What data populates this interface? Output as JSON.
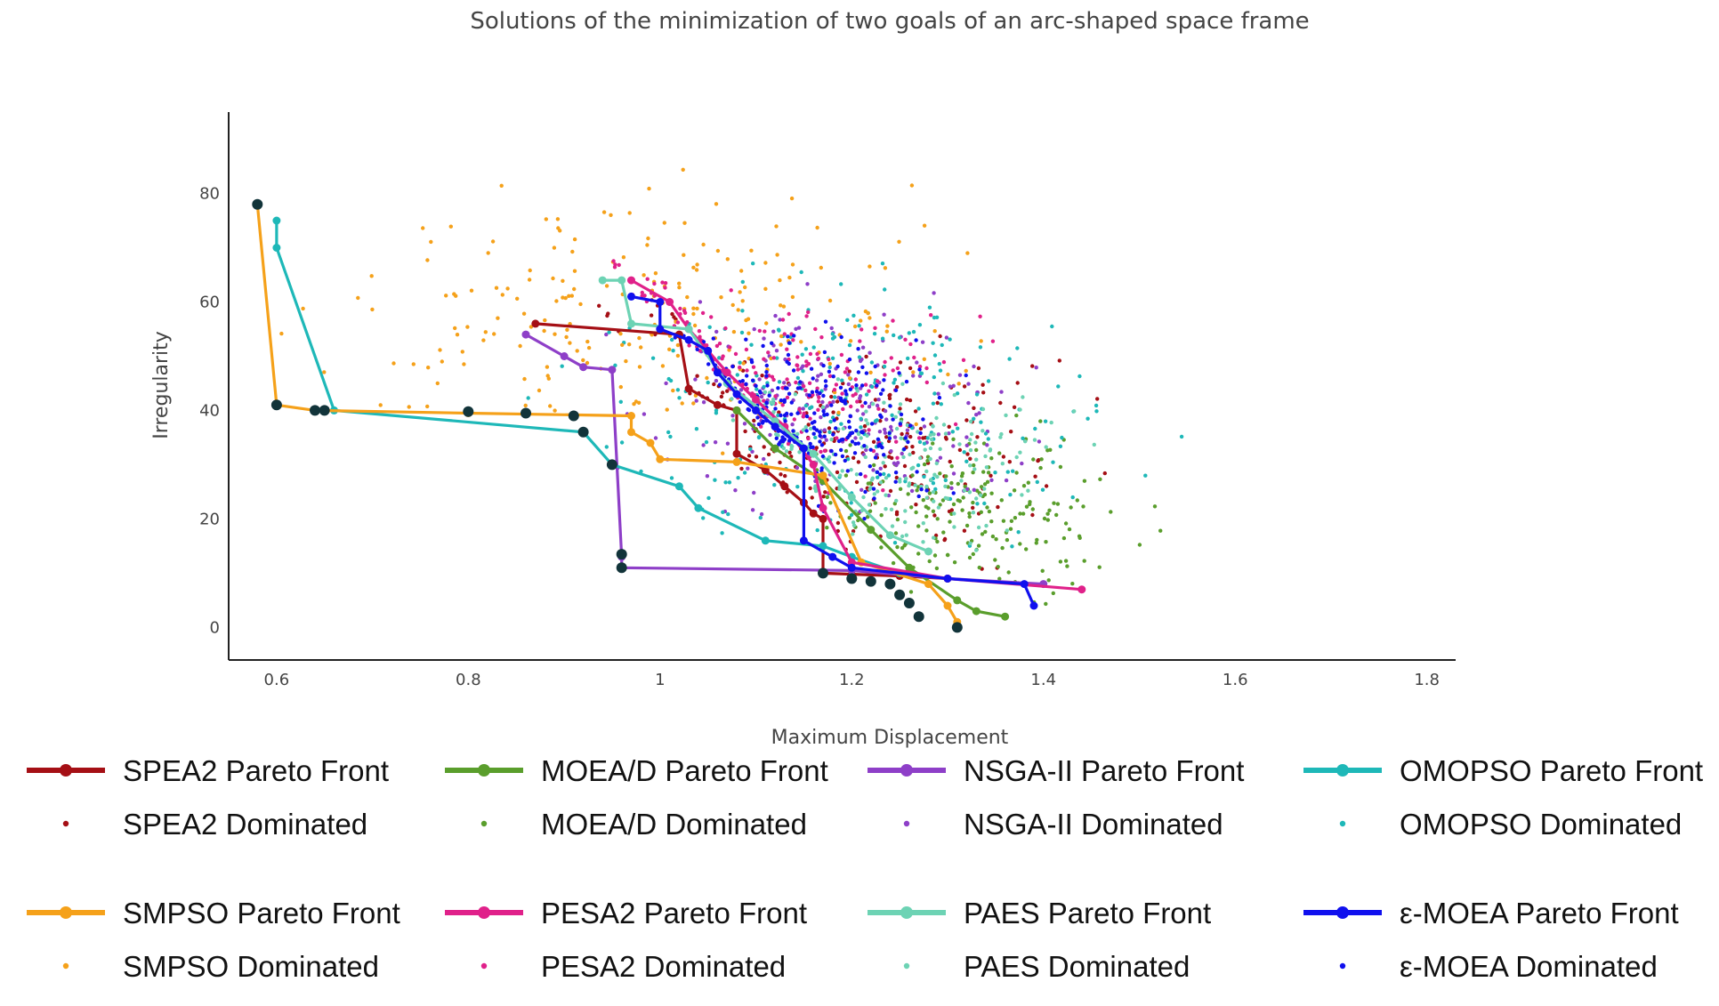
{
  "chart_data": {
    "type": "scatter",
    "title": "Solutions of the minimization of two goals of an arc-shaped space frame",
    "xlabel": "Maximum Displacement",
    "ylabel": "Irregularity",
    "xlim": [
      0.55,
      1.83
    ],
    "ylim": [
      -6,
      95
    ],
    "xticks": [
      0.6,
      0.8,
      1,
      1.2,
      1.4,
      1.6,
      1.8
    ],
    "xtick_labels": [
      "0.6",
      "0.8",
      "1",
      "1.2",
      "1.4",
      "1.6",
      "1.8"
    ],
    "yticks": [
      0,
      20,
      40,
      60,
      80
    ],
    "ytick_labels": [
      "0",
      "20",
      "40",
      "60",
      "80"
    ],
    "grid": false,
    "legend_position": "bottom",
    "series": [
      {
        "name": "SPEA2 Pareto Front",
        "dominated_name": "SPEA2 Dominated",
        "color": "#a50f15",
        "pareto": [
          [
            0.87,
            56
          ],
          [
            1.02,
            54
          ],
          [
            1.03,
            44
          ],
          [
            1.06,
            41
          ],
          [
            1.08,
            40
          ],
          [
            1.08,
            32
          ],
          [
            1.11,
            29
          ],
          [
            1.13,
            26
          ],
          [
            1.15,
            23
          ],
          [
            1.16,
            21
          ],
          [
            1.17,
            20
          ],
          [
            1.17,
            10
          ],
          [
            1.25,
            9.5
          ],
          [
            1.3,
            9
          ]
        ],
        "dominated_center": [
          1.2,
          33
        ],
        "dominated_spread": [
          0.2,
          17
        ],
        "dominated_count": 220
      },
      {
        "name": "MOEA/D Pareto Front",
        "dominated_name": "MOEA/D Dominated",
        "color": "#5a9e2c",
        "pareto": [
          [
            1.08,
            40
          ],
          [
            1.12,
            33
          ],
          [
            1.17,
            27
          ],
          [
            1.22,
            18
          ],
          [
            1.26,
            11
          ],
          [
            1.31,
            5
          ],
          [
            1.33,
            3
          ],
          [
            1.36,
            2
          ]
        ],
        "dominated_center": [
          1.33,
          22
        ],
        "dominated_spread": [
          0.14,
          15
        ],
        "dominated_count": 200
      },
      {
        "name": "NSGA-II Pareto Front",
        "dominated_name": "NSGA-II Dominated",
        "color": "#8e3fc8",
        "pareto": [
          [
            0.86,
            54
          ],
          [
            0.9,
            50
          ],
          [
            0.92,
            48
          ],
          [
            0.95,
            47.5
          ],
          [
            0.96,
            13
          ],
          [
            0.96,
            11
          ],
          [
            1.2,
            10.5
          ],
          [
            1.3,
            9
          ],
          [
            1.4,
            8
          ]
        ],
        "dominated_center": [
          1.18,
          40
        ],
        "dominated_spread": [
          0.18,
          17
        ],
        "dominated_count": 200
      },
      {
        "name": "OMOPSO Pareto Front",
        "dominated_name": "OMOPSO Dominated",
        "color": "#1eb8b8",
        "pareto": [
          [
            0.6,
            75
          ],
          [
            0.6,
            70
          ],
          [
            0.66,
            40
          ],
          [
            0.92,
            36
          ],
          [
            0.95,
            30
          ],
          [
            1.02,
            26
          ],
          [
            1.04,
            22
          ],
          [
            1.11,
            16
          ],
          [
            1.17,
            15
          ],
          [
            1.2,
            13
          ],
          [
            1.25,
            10
          ]
        ],
        "dominated_center": [
          1.2,
          40
        ],
        "dominated_spread": [
          0.25,
          22
        ],
        "dominated_count": 240
      },
      {
        "name": "SMPSO Pareto Front",
        "dominated_name": "SMPSO Dominated",
        "color": "#f5a11a",
        "pareto": [
          [
            0.58,
            78
          ],
          [
            0.6,
            41
          ],
          [
            0.64,
            40
          ],
          [
            0.8,
            39.5
          ],
          [
            0.97,
            39
          ],
          [
            0.97,
            36
          ],
          [
            0.99,
            34
          ],
          [
            1.0,
            31
          ],
          [
            1.08,
            30.5
          ],
          [
            1.17,
            28
          ],
          [
            1.21,
            12
          ],
          [
            1.28,
            8
          ],
          [
            1.3,
            4
          ],
          [
            1.31,
            1
          ]
        ],
        "dominated_center": [
          1.0,
          58
        ],
        "dominated_spread": [
          0.3,
          22
        ],
        "dominated_count": 220
      },
      {
        "name": "PESA2 Pareto Front",
        "dominated_name": "PESA2 Dominated",
        "color": "#e0218a",
        "pareto": [
          [
            0.97,
            64
          ],
          [
            1.01,
            60
          ],
          [
            1.03,
            55
          ],
          [
            1.05,
            51
          ],
          [
            1.07,
            47
          ],
          [
            1.1,
            42
          ],
          [
            1.13,
            37
          ],
          [
            1.16,
            30
          ],
          [
            1.17,
            22
          ],
          [
            1.2,
            12
          ],
          [
            1.3,
            9
          ],
          [
            1.44,
            7
          ]
        ],
        "dominated_center": [
          1.13,
          43
        ],
        "dominated_spread": [
          0.16,
          16
        ],
        "dominated_count": 200
      },
      {
        "name": "PAES Pareto Front",
        "dominated_name": "PAES Dominated",
        "color": "#6dd3b4",
        "pareto": [
          [
            0.94,
            64
          ],
          [
            0.96,
            64
          ],
          [
            0.97,
            56
          ],
          [
            1.03,
            55
          ],
          [
            1.07,
            45
          ],
          [
            1.12,
            38
          ],
          [
            1.16,
            32
          ],
          [
            1.2,
            24
          ],
          [
            1.24,
            17
          ],
          [
            1.28,
            14
          ]
        ],
        "dominated_center": [
          1.25,
          30
        ],
        "dominated_spread": [
          0.16,
          16
        ],
        "dominated_count": 200
      },
      {
        "name": "ε-MOEA Pareto Front",
        "dominated_name": "ε-MOEA Dominated",
        "color": "#1010ee",
        "pareto": [
          [
            0.97,
            61
          ],
          [
            1.0,
            60
          ],
          [
            1.0,
            55
          ],
          [
            1.03,
            53
          ],
          [
            1.05,
            51
          ],
          [
            1.06,
            47
          ],
          [
            1.08,
            43
          ],
          [
            1.1,
            40
          ],
          [
            1.12,
            37
          ],
          [
            1.15,
            33
          ],
          [
            1.15,
            16
          ],
          [
            1.18,
            13
          ],
          [
            1.2,
            11
          ],
          [
            1.3,
            9
          ],
          [
            1.38,
            8
          ],
          [
            1.39,
            4
          ]
        ],
        "dominated_center": [
          1.17,
          38
        ],
        "dominated_spread": [
          0.12,
          15
        ],
        "dominated_count": 240
      }
    ],
    "nondominated_front": [
      [
        0.58,
        78
      ],
      [
        0.6,
        41
      ],
      [
        0.64,
        40
      ],
      [
        0.65,
        40
      ],
      [
        0.8,
        39.8
      ],
      [
        0.86,
        39.5
      ],
      [
        0.91,
        39
      ],
      [
        0.92,
        36
      ],
      [
        0.95,
        30
      ],
      [
        0.96,
        13.5
      ],
      [
        0.96,
        11
      ],
      [
        1.17,
        10
      ],
      [
        1.2,
        9
      ],
      [
        1.22,
        8.5
      ],
      [
        1.24,
        8
      ],
      [
        1.25,
        6
      ],
      [
        1.26,
        4.5
      ],
      [
        1.27,
        2
      ],
      [
        1.31,
        0
      ]
    ],
    "nondominated_color": "#12343a"
  }
}
